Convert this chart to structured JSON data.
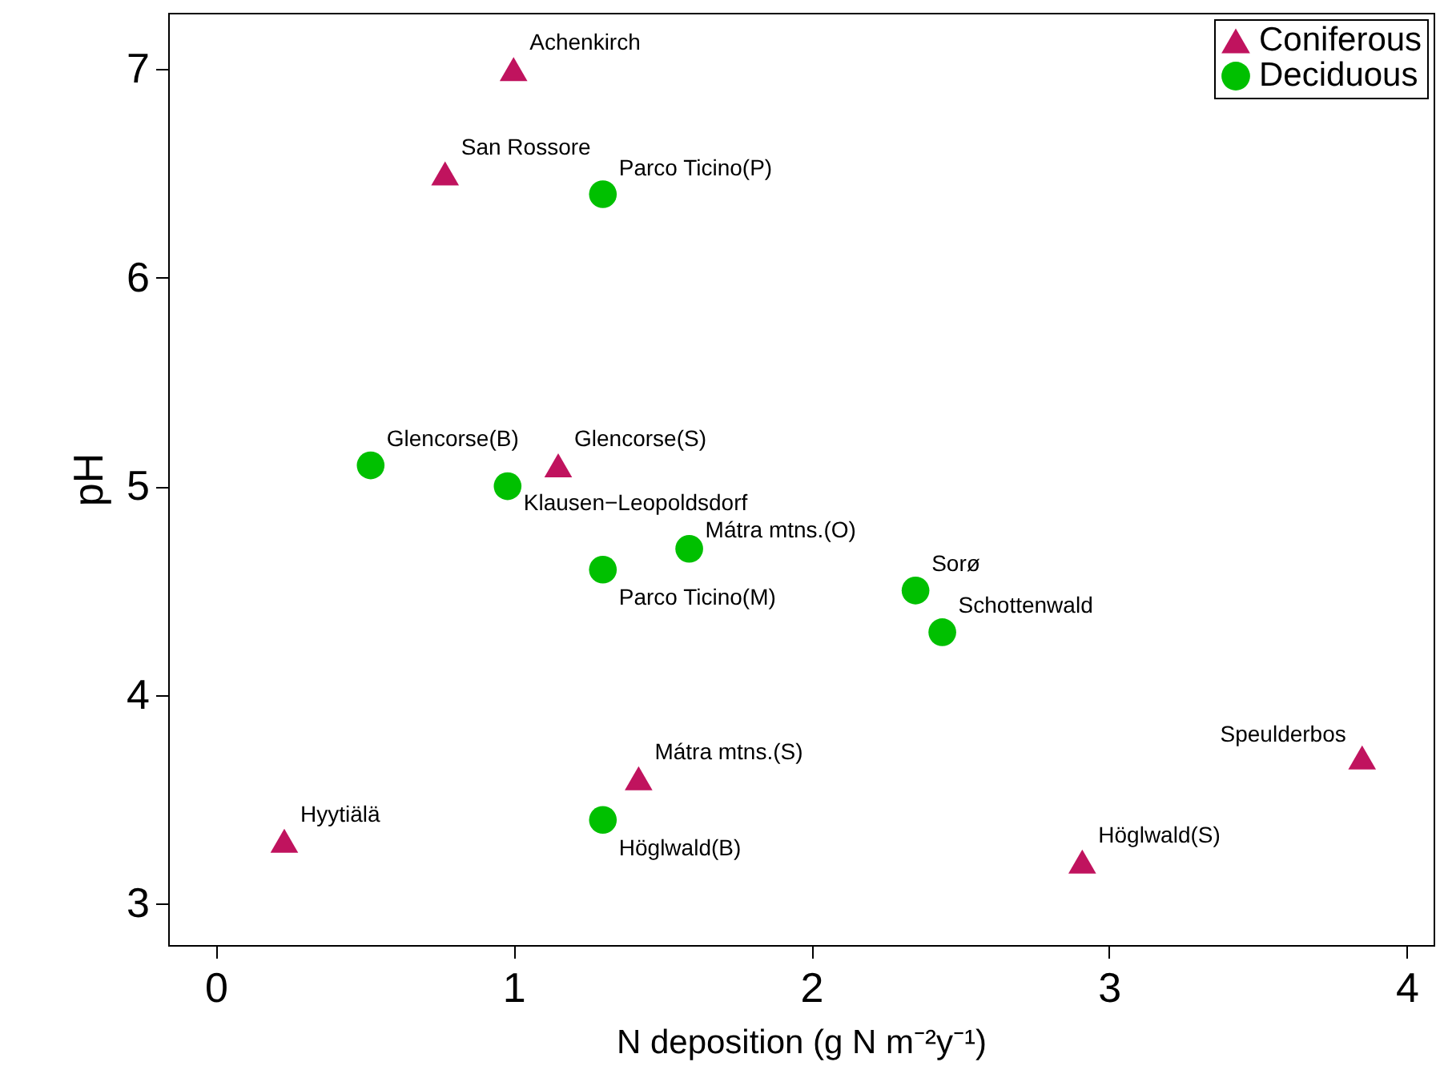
{
  "chart_data": {
    "type": "scatter",
    "xlabel": "N deposition (g N m⁻²y⁻¹)",
    "ylabel": "pH",
    "xlim": [
      -0.16,
      4.09
    ],
    "ylim": [
      2.8,
      7.27
    ],
    "xticks": [
      0,
      1,
      2,
      3,
      4
    ],
    "yticks": [
      3,
      4,
      5,
      6,
      7
    ],
    "grid": false,
    "legend": "top right",
    "series": [
      {
        "name": "Coniferous",
        "color": "#c0135e",
        "marker": "triangle",
        "x": [
          1.0,
          0.77,
          1.15,
          1.42,
          0.23,
          2.91,
          3.85
        ],
        "values": [
          7.0,
          6.5,
          5.1,
          3.6,
          3.3,
          3.2,
          3.7
        ]
      },
      {
        "name": "Deciduous",
        "color": "#00c000",
        "marker": "circle",
        "x": [
          1.3,
          0.52,
          0.98,
          1.59,
          1.3,
          2.35,
          2.44,
          1.3
        ],
        "values": [
          6.4,
          5.1,
          5.0,
          4.7,
          4.6,
          4.5,
          4.3,
          3.4
        ]
      }
    ],
    "annotations": [
      {
        "text": "Achenkirch",
        "x": 1.0,
        "y": 7.0
      },
      {
        "text": "San Rossore",
        "x": 0.77,
        "y": 6.5
      },
      {
        "text": "Parco Ticino(P)",
        "x": 1.3,
        "y": 6.4
      },
      {
        "text": "Glencorse(B)",
        "x": 0.52,
        "y": 5.1
      },
      {
        "text": "Glencorse(S)",
        "x": 1.15,
        "y": 5.1
      },
      {
        "text": "Klausen−Leopoldsdorf",
        "x": 0.98,
        "y": 5.0
      },
      {
        "text": "Mátra mtns.(O)",
        "x": 1.59,
        "y": 4.7
      },
      {
        "text": "Parco Ticino(M)",
        "x": 1.3,
        "y": 4.6
      },
      {
        "text": "Sorø",
        "x": 2.35,
        "y": 4.5
      },
      {
        "text": "Schottenwald",
        "x": 2.44,
        "y": 4.3
      },
      {
        "text": "Speulderbos",
        "x": 3.85,
        "y": 3.7
      },
      {
        "text": "Mátra mtns.(S)",
        "x": 1.42,
        "y": 3.6
      },
      {
        "text": "Hyytiälä",
        "x": 0.23,
        "y": 3.3
      },
      {
        "text": "Höglwald(B)",
        "x": 1.3,
        "y": 3.4
      },
      {
        "text": "Höglwald(S)",
        "x": 2.91,
        "y": 3.2
      }
    ]
  }
}
